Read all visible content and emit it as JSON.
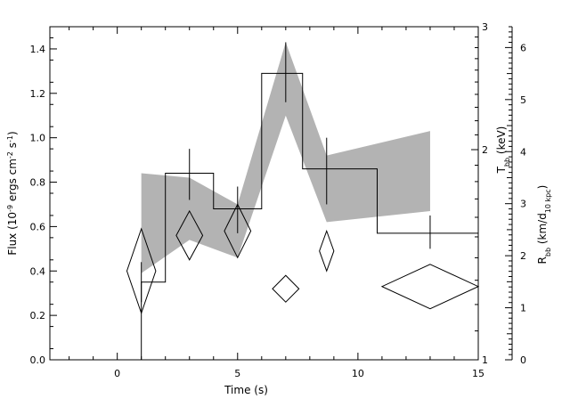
{
  "chart_data": {
    "type": "scatter",
    "xlabel": "Time (s)",
    "ylabel": "Flux (10⁻⁹ ergs cm⁻² s⁻¹)",
    "ylabel_parts": {
      "base": "Flux (10",
      "exp1": "-9",
      "mid1": " ergs cm",
      "exp2": "-2",
      "mid2": " s",
      "exp3": "-1",
      "end": ")"
    },
    "xlim": [
      -2.8,
      15
    ],
    "ylim": [
      0,
      1.5
    ],
    "x_ticks": [
      "0",
      "5",
      "10",
      "15"
    ],
    "y_ticks": [
      "0.0",
      "0.2",
      "0.4",
      "0.6",
      "0.8",
      "1.0",
      "1.2",
      "1.4"
    ],
    "right_axis_kt": {
      "label": "T_bb (keV)",
      "label_parts": {
        "base": "T",
        "sub": "bb",
        "rest": " (keV)"
      },
      "scale": "log",
      "lim": [
        1,
        3
      ],
      "tick_labels": [
        "1",
        "2",
        "3"
      ]
    },
    "right_axis_radius": {
      "label": "R_bb (km/d_10 kpc)",
      "label_parts": {
        "base": "R",
        "sub": "bb",
        "rest1": " (km/d",
        "sub2": "10 kpc",
        "rest2": ")"
      },
      "lim": [
        0,
        6.4
      ],
      "tick_labels": [
        "0",
        "1",
        "2",
        "3",
        "4",
        "5",
        "6"
      ]
    },
    "flux_histogram": {
      "edges": [
        1,
        2,
        4,
        6,
        7.7,
        10.8,
        15
      ],
      "values": [
        0.35,
        0.84,
        0.68,
        1.29,
        0.86,
        0.57
      ]
    },
    "flux_error_bars": [
      {
        "x": 1,
        "low": 0.26,
        "high": 0.44
      },
      {
        "x": 3,
        "low": 0.72,
        "high": 0.95
      },
      {
        "x": 5,
        "low": 0.57,
        "high": 0.78
      },
      {
        "x": 7,
        "low": 1.16,
        "high": 1.43
      },
      {
        "x": 8.7,
        "low": 0.7,
        "high": 1.0
      },
      {
        "x": 13,
        "low": 0.5,
        "high": 0.65
      }
    ],
    "kt_band": {
      "x": [
        1,
        3,
        5,
        7,
        8.7,
        13
      ],
      "low": [
        0.39,
        0.54,
        0.46,
        1.1,
        0.62,
        0.67
      ],
      "high": [
        0.84,
        0.82,
        0.7,
        1.43,
        0.92,
        1.03
      ]
    },
    "radius_diamonds": [
      {
        "x": 1,
        "y": 0.4,
        "dx": 0.6,
        "dy": 0.19
      },
      {
        "x": 3,
        "y": 0.56,
        "dx": 0.55,
        "dy": 0.11
      },
      {
        "x": 5,
        "y": 0.58,
        "dx": 0.55,
        "dy": 0.12
      },
      {
        "x": 7,
        "y": 0.32,
        "dx": 0.55,
        "dy": 0.06
      },
      {
        "x": 8.7,
        "y": 0.49,
        "dx": 0.3,
        "dy": 0.09
      },
      {
        "x": 13,
        "y": 0.33,
        "dx": 2.0,
        "dy": 0.1
      }
    ],
    "colors": {
      "band": "#b3b3b3",
      "line": "#000000"
    }
  }
}
